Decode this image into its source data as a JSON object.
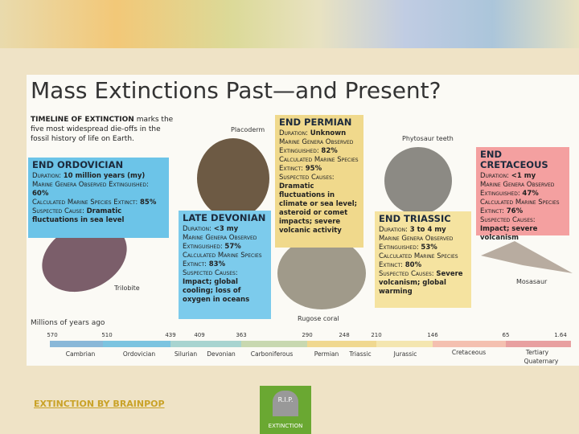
{
  "title": "Mass Extinctions Past—and Present?",
  "intro": {
    "lead": "TIMELINE OF EXTINCTION",
    "text": "marks the five most widespread die-offs in the fossil history of life on Earth."
  },
  "events": [
    {
      "heading": "END ORDOVICIAN",
      "fields": [
        {
          "label": "Duration:",
          "value": "10 million years (my)"
        },
        {
          "label": "Marine Genera Observed Extinguished:",
          "value": "60%"
        },
        {
          "label": "Calculated Marine Species Extinct:",
          "value": "85%"
        },
        {
          "label": "Suspected Cause:",
          "value": "Dramatic fluctuations in sea level"
        }
      ]
    },
    {
      "heading": "LATE DEVONIAN",
      "fields": [
        {
          "label": "Duration:",
          "value": "<3 my"
        },
        {
          "label": "Marine Genera Observed Extinguished:",
          "value": "57%"
        },
        {
          "label": "Calculated Marine Species Extinct:",
          "value": "83%"
        },
        {
          "label": "Suspected Causes:",
          "value": "Impact; global cooling; loss of oxygen in oceans"
        }
      ]
    },
    {
      "heading": "END PERMIAN",
      "fields": [
        {
          "label": "Duration:",
          "value": "Unknown"
        },
        {
          "label": "Marine Genera Observed Extinguished:",
          "value": "82%"
        },
        {
          "label": "Calculated Marine Species Extinct:",
          "value": "95%"
        },
        {
          "label": "Suspected Causes:",
          "value": "Dramatic fluctuations in climate or sea level; asteroid or comet impacts; severe volcanic activity"
        }
      ]
    },
    {
      "heading": "END TRIASSIC",
      "fields": [
        {
          "label": "Duration:",
          "value": "3 to 4 my"
        },
        {
          "label": "Marine Genera Observed Extinguished:",
          "value": "53%"
        },
        {
          "label": "Calculated Marine Species Extinct:",
          "value": "80%"
        },
        {
          "label": "Suspected Causes:",
          "value": "Severe volcanism; global warming"
        }
      ]
    },
    {
      "heading": "END CRETACEOUS",
      "fields": [
        {
          "label": "Duration:",
          "value": "<1 my"
        },
        {
          "label": "Marine Genera Observed Extinguished:",
          "value": "47%"
        },
        {
          "label": "Calculated Marine Species Extinct:",
          "value": "76%"
        },
        {
          "label": "Suspected Causes:",
          "value": "Impact; severe volcanism"
        }
      ]
    }
  ],
  "fossil_labels": [
    "Placoderm",
    "Phytosaur teeth",
    "Trilobite",
    "Rugose coral",
    "Mosasaur"
  ],
  "timeline": {
    "label": "Millions of years ago",
    "ticks": [
      "570",
      "510",
      "439",
      "409",
      "363",
      "290",
      "248",
      "210",
      "146",
      "65",
      "1.64"
    ],
    "periods": [
      "Cambrian",
      "Ordovician",
      "Silurian",
      "Devonian",
      "Carboniferous",
      "Permian",
      "Triassic",
      "Jurassic",
      "Cretaceous",
      "Tertiary",
      "Quaternary"
    ]
  },
  "footer": {
    "link": "EXTINCTION BY BRAINPOP",
    "icon_top": "R.I.P.",
    "icon_bottom": "EXTINCTION"
  }
}
